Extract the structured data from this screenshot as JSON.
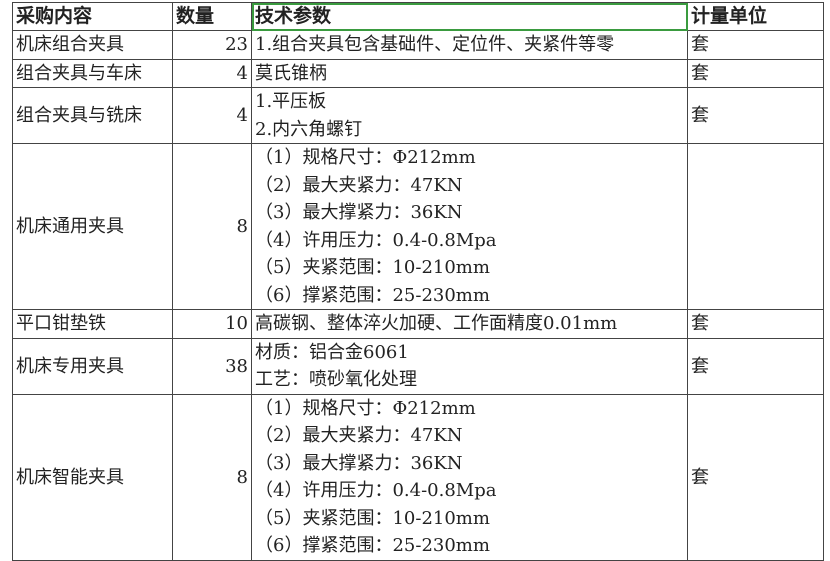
{
  "headers": [
    "采购内容",
    "数量",
    "技术参数",
    "计量单位"
  ],
  "rows": [
    {
      "name": "机床组合夹具",
      "qty": "23",
      "params": [
        "1.组合夹具包含基础件、定位件、夹紧件等零"
      ],
      "unit": "套"
    },
    {
      "name": "组合夹具与车床",
      "qty": "4",
      "params": [
        "莫氏锥柄"
      ],
      "unit": "套"
    },
    {
      "name": "组合夹具与铣床",
      "qty": "4",
      "params": [
        "1.平压板",
        "2.内六角螺钉"
      ],
      "unit": "套"
    },
    {
      "name": "机床通用夹具",
      "qty": "8",
      "params": [
        "（1）规格尺寸：Φ212mm",
        "（2）最大夹紧力：47KN",
        "（3）最大撑紧力：36KN",
        "（4）许用压力：0.4-0.8Mpa",
        "（5）夹紧范围：10-210mm",
        "（6）撑紧范围：25-230mm"
      ],
      "unit": ""
    },
    {
      "name": "平口钳垫铁",
      "qty": "10",
      "params": [
        "高碳钢、整体淬火加硬、工作面精度0.01mm"
      ],
      "unit": "套"
    },
    {
      "name": "机床专用夹具",
      "qty": "38",
      "params": [
        "材质：铝合金6061",
        "工艺：喷砂氧化处理"
      ],
      "unit": "套"
    },
    {
      "name": "机床智能夹具",
      "qty": "8",
      "params": [
        "（1）规格尺寸：Φ212mm",
        "（2）最大夹紧力：47KN",
        "（3）最大撑紧力：36KN",
        "（4）许用压力：0.4-0.8Mpa",
        "（5）夹紧范围：10-210mm",
        "（6）撑紧范围：25-230mm"
      ],
      "unit": "套"
    }
  ],
  "selection_color": "#3a9b3f"
}
